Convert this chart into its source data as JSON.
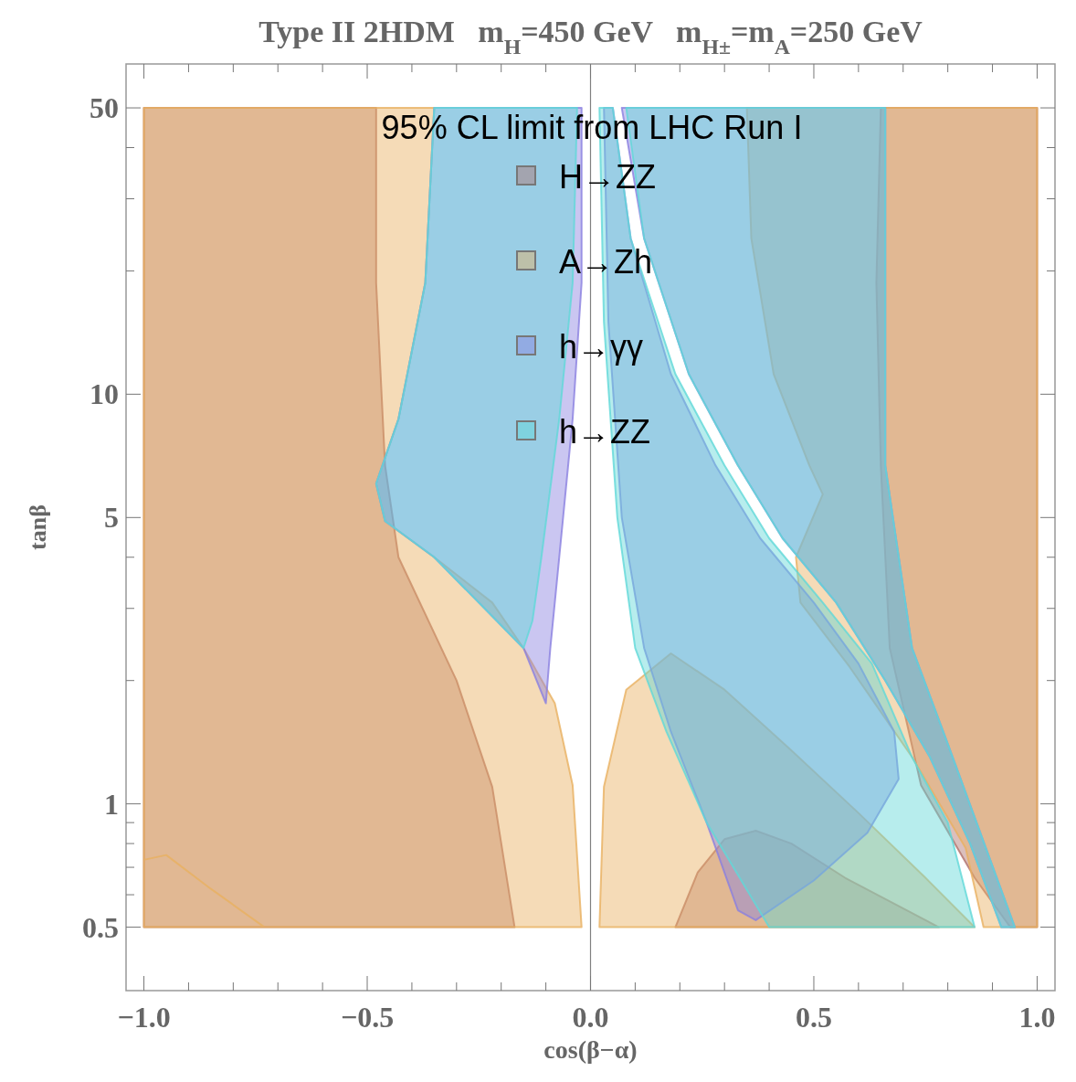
{
  "chart_data": {
    "type": "area",
    "title": "Type II 2HDM   m$_{H}$=450 GeV   m$_{H±}$=m$_{A}$=250 GeV",
    "xlabel": "cos(β−α)",
    "ylabel": "tanβ",
    "legend_title": "95% CL limit from LHC Run I",
    "legend": "top",
    "log": "y",
    "grid": false,
    "xlim": [
      -1.04,
      1.04
    ],
    "ylim": [
      0.35,
      64
    ],
    "xticks": [
      {
        "value": -1,
        "label": "−1.0"
      },
      {
        "value": -0.9,
        "label": null
      },
      {
        "value": -0.8,
        "label": null
      },
      {
        "value": -0.7,
        "label": null
      },
      {
        "value": -0.6,
        "label": null
      },
      {
        "value": -0.5,
        "label": "−0.5"
      },
      {
        "value": -0.4,
        "label": null
      },
      {
        "value": -0.3,
        "label": null
      },
      {
        "value": -0.2,
        "label": null
      },
      {
        "value": -0.1,
        "label": null
      },
      {
        "value": 0,
        "label": "0.0"
      },
      {
        "value": 0.1,
        "label": null
      },
      {
        "value": 0.2,
        "label": null
      },
      {
        "value": 0.3,
        "label": null
      },
      {
        "value": 0.4,
        "label": null
      },
      {
        "value": 0.5,
        "label": "0.5"
      },
      {
        "value": 0.6,
        "label": null
      },
      {
        "value": 0.7,
        "label": null
      },
      {
        "value": 0.8,
        "label": null
      },
      {
        "value": 0.9,
        "label": null
      },
      {
        "value": 1,
        "label": "1.0"
      }
    ],
    "yticks": [
      0.5,
      {
        "value": 0.6,
        "label": null
      },
      {
        "value": 0.7,
        "label": null
      },
      {
        "value": 0.8,
        "label": null
      },
      {
        "value": 0.9,
        "label": null
      },
      1,
      {
        "value": 2,
        "label": null
      },
      {
        "value": 3,
        "label": null
      },
      {
        "value": 4,
        "label": null
      },
      5,
      10,
      {
        "value": 20,
        "label": null
      },
      {
        "value": 30,
        "label": null
      },
      {
        "value": 40,
        "label": null
      },
      50
    ],
    "ref_lines": [
      {
        "axis": "x",
        "value": 0,
        "color": "#808080"
      }
    ],
    "series": [
      {
        "name": "H→ZZ",
        "color": "#b0706c",
        "x": [
          -1,
          -1,
          -0.48,
          -0.48,
          -0.46,
          -0.43,
          -0.3,
          -0.22,
          -0.17,
          null,
          0.65,
          0.64,
          0.65,
          0.67,
          0.74,
          0.86,
          0.94,
          1,
          1,
          null,
          0.19,
          0.24,
          0.3,
          0.37,
          0.45,
          0.57,
          0.78
        ],
        "values": [
          0.5,
          50,
          50,
          18.7,
          6.7,
          4.0,
          2.0,
          1.1,
          0.5,
          null,
          50,
          18.7,
          6.7,
          2.4,
          1.11,
          0.66,
          0.5,
          0.5,
          50,
          null,
          0.5,
          0.68,
          0.82,
          0.86,
          0.8,
          0.66,
          0.5
        ]
      },
      {
        "name": "A→Zh",
        "color": "#e8b060",
        "x": [
          -1,
          -1,
          -0.35,
          -0.37,
          -0.43,
          -0.48,
          -0.46,
          -0.35,
          -0.22,
          -0.15,
          -0.08,
          -0.04,
          -0.02,
          null,
          0.02,
          0.03,
          0.08,
          0.18,
          0.3,
          0.45,
          0.6,
          0.75,
          0.86,
          null,
          0.35,
          0.36,
          0.41,
          0.49,
          0.52,
          0.46,
          0.47,
          0.58,
          0.72,
          0.84,
          0.88,
          1,
          1,
          null,
          -1,
          -1,
          -0.95,
          -0.85,
          -0.73
        ],
        "values": [
          0.5,
          50,
          50,
          18.7,
          8.7,
          6.05,
          4.9,
          4.0,
          3.1,
          2.4,
          1.76,
          1.11,
          0.5,
          null,
          0.5,
          1.1,
          1.9,
          2.33,
          1.9,
          1.35,
          0.95,
          0.66,
          0.5,
          null,
          50,
          24,
          11.2,
          6.7,
          5.7,
          4.0,
          3.1,
          2.16,
          1.3,
          0.78,
          0.5,
          0.5,
          50,
          null,
          0.5,
          0.73,
          0.75,
          0.62,
          0.5
        ]
      },
      {
        "name": "h→γγ",
        "color": "#8a80e0",
        "x": [
          -0.35,
          -0.02,
          -0.02,
          -0.04,
          -0.07,
          -0.09,
          -0.1,
          -0.15,
          -0.35,
          -0.46,
          -0.48,
          -0.43,
          -0.37,
          null,
          0.03,
          0.05,
          0.09,
          0.18,
          0.28,
          0.38,
          0.5,
          0.6,
          0.68,
          0.69,
          0.62,
          0.5,
          0.37,
          0.33,
          0.26,
          0.18,
          0.12,
          0.07,
          0.04,
          null,
          0.07,
          0.66,
          0.66,
          0.72,
          0.8,
          0.95,
          0.92,
          0.85,
          0.76,
          0.66,
          0.55,
          0.43,
          0.33,
          0.22,
          0.12
        ],
        "values": [
          50,
          50,
          18.7,
          8.7,
          4.0,
          2.4,
          1.76,
          2.4,
          4.0,
          4.9,
          6.05,
          8.7,
          18.7,
          null,
          50,
          50,
          24,
          11.2,
          6.7,
          4.45,
          3.1,
          2.2,
          1.5,
          1.15,
          0.85,
          0.65,
          0.52,
          0.55,
          0.9,
          1.5,
          2.4,
          5.0,
          15,
          null,
          50,
          50,
          6.7,
          2.4,
          1.4,
          0.5,
          0.5,
          0.8,
          1.3,
          2.0,
          3.1,
          4.45,
          6.7,
          11.2,
          24
        ]
      },
      {
        "name": "h→ZZ",
        "color": "#60d8d8",
        "x": [
          -0.35,
          -0.03,
          -0.04,
          -0.07,
          -0.11,
          -0.13,
          -0.15,
          -0.35,
          -0.46,
          -0.48,
          -0.43,
          -0.37,
          null,
          0.02,
          0.05,
          0.09,
          0.19,
          0.3,
          0.4,
          0.52,
          0.63,
          0.72,
          0.8,
          0.86,
          0.4,
          0.26,
          0.17,
          0.1,
          0.06,
          0.03,
          null,
          0.08,
          0.66,
          0.66,
          0.72,
          0.8,
          0.95,
          0.92,
          0.85,
          0.76,
          0.66,
          0.55,
          0.43,
          0.33,
          0.22,
          0.12
        ],
        "values": [
          50,
          50,
          18.7,
          8.7,
          4.0,
          2.8,
          2.4,
          4.0,
          4.9,
          6.05,
          8.7,
          18.7,
          null,
          50,
          50,
          24,
          11.2,
          6.7,
          4.45,
          3.1,
          2.2,
          1.3,
          0.9,
          0.5,
          0.5,
          0.9,
          1.5,
          2.4,
          5.0,
          15,
          null,
          50,
          50,
          6.7,
          2.4,
          1.4,
          0.5,
          0.5,
          0.8,
          1.3,
          2.0,
          3.1,
          4.45,
          6.7,
          11.2,
          24
        ]
      }
    ]
  }
}
